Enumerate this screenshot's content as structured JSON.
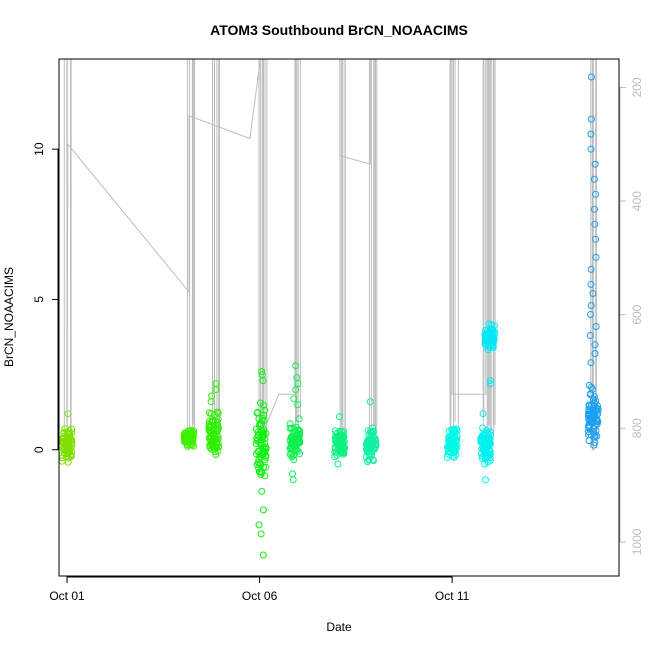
{
  "chart_data": {
    "type": "scatter",
    "title": "ATOM3 Southbound BrCN_NOAACIMS",
    "xlabel": "Date",
    "ylabel": "BrCN_NOAACIMS",
    "xlim": [
      "2017-09-30T19:00",
      "2017-10-15T08:00"
    ],
    "ylim": [
      -4.2,
      13
    ],
    "x_ticks": [
      {
        "value": "2017-10-01",
        "label": "Oct 01"
      },
      {
        "value": "2017-10-06",
        "label": "Oct 06"
      },
      {
        "value": "2017-10-11",
        "label": "Oct 11"
      }
    ],
    "y_ticks": [
      0,
      5,
      10
    ],
    "right_axis": {
      "ylim": [
        1060,
        150
      ],
      "ticks": [
        200,
        400,
        600,
        800,
        1000
      ],
      "color": "#bdbdbd",
      "description": "grey pressure profile line"
    },
    "grid": false,
    "marker": "open-circle",
    "clusters": [
      {
        "x": "2017-10-01T00:00",
        "color": "#7fe000",
        "y_min": -0.5,
        "y_max": 0.8,
        "outliers": [
          1.2
        ]
      },
      {
        "x": "2017-10-04T04:00",
        "color": "#3ff000",
        "y_min": 0.05,
        "y_max": 0.75,
        "outliers": []
      },
      {
        "x": "2017-10-04T19:30",
        "color": "#2ef000",
        "y_min": -0.3,
        "y_max": 1.4,
        "outliers": [
          1.6,
          1.8,
          2.0,
          2.2
        ]
      },
      {
        "x": "2017-10-06T01:00",
        "color": "#10f010",
        "y_min": -1.8,
        "y_max": 2.0,
        "outliers": [
          2.3,
          2.5,
          2.6,
          -2.0,
          -2.5,
          -2.8,
          -3.5
        ]
      },
      {
        "x": "2017-10-06T22:00",
        "color": "#10f050",
        "y_min": -0.5,
        "y_max": 1.2,
        "outliers": [
          1.5,
          1.7,
          2.0,
          2.2,
          2.4,
          2.8,
          -0.8,
          -1.0
        ]
      },
      {
        "x": "2017-10-08T02:00",
        "color": "#10f080",
        "y_min": -0.6,
        "y_max": 0.95,
        "outliers": [
          1.1
        ]
      },
      {
        "x": "2017-10-08T21:30",
        "color": "#10f0a0",
        "y_min": -0.6,
        "y_max": 0.9,
        "outliers": [
          1.6
        ]
      },
      {
        "x": "2017-10-11T00:00",
        "color": "#00f8e8",
        "y_min": -0.5,
        "y_max": 0.95,
        "outliers": []
      },
      {
        "x": "2017-10-11T21:00",
        "color": "#00f0f0",
        "y_min": -0.7,
        "y_max": 1.0,
        "outliers": [
          -1.0,
          1.2
        ]
      },
      {
        "x": "2017-10-11T23:30",
        "color": "#00e8f8",
        "y_min": 3.2,
        "y_max": 4.3,
        "outliers": [
          2.2,
          2.3
        ]
      },
      {
        "x": "2017-10-14T16:00",
        "color": "#1aa0f0",
        "y_min": -0.2,
        "y_max": 2.5,
        "outliers": [
          2.9,
          3.2,
          3.5,
          3.8,
          4.1,
          4.5,
          4.8,
          5.2,
          5.5,
          6.0,
          6.4,
          7.0,
          7.5,
          8.0,
          8.5,
          9.0,
          9.5,
          10.0,
          10.5,
          11.0,
          12.4
        ]
      }
    ],
    "pressure_line": [
      {
        "x": "2017-10-01T00:00",
        "p": 150
      },
      {
        "x": "2017-10-01T00:00",
        "p": 780
      },
      {
        "x": "2017-10-01T00:30",
        "p": 300
      },
      {
        "x": "2017-10-04T04:00",
        "p": 560
      },
      {
        "x": "2017-10-04T04:00",
        "p": 250
      },
      {
        "x": "2017-10-05T18:00",
        "p": 290
      },
      {
        "x": "2017-10-06T00:30",
        "p": 150
      },
      {
        "x": "2017-10-06T00:30",
        "p": 820
      },
      {
        "x": "2017-10-06T12:00",
        "p": 740
      },
      {
        "x": "2017-10-06T22:00",
        "p": 740
      },
      {
        "x": "2017-10-06T22:00",
        "p": 150
      },
      {
        "x": "2017-10-08T02:00",
        "p": 150
      },
      {
        "x": "2017-10-08T02:00",
        "p": 320
      },
      {
        "x": "2017-10-08T21:00",
        "p": 335
      },
      {
        "x": "2017-10-08T21:00",
        "p": 150
      },
      {
        "x": "2017-10-11T00:00",
        "p": 150
      },
      {
        "x": "2017-10-11T00:00",
        "p": 740
      },
      {
        "x": "2017-10-11T21:00",
        "p": 740
      },
      {
        "x": "2017-10-11T21:00",
        "p": 150
      },
      {
        "x": "2017-10-14T16:00",
        "p": 150
      },
      {
        "x": "2017-10-14T16:00",
        "p": 840
      }
    ]
  }
}
